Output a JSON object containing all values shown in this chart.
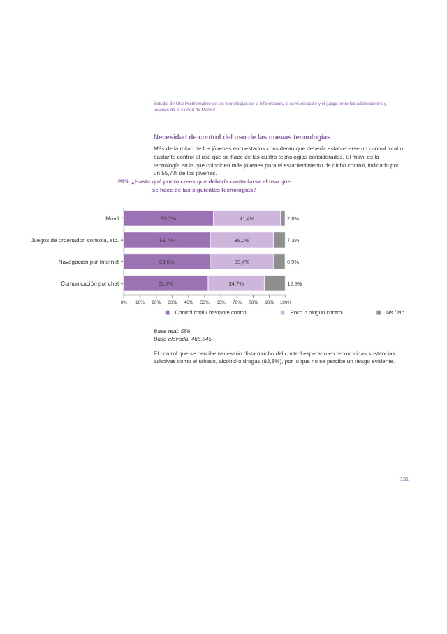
{
  "chart_data": {
    "type": "bar",
    "orientation": "horizontal",
    "stacked": true,
    "title": "P25. ¿Hasta qué punto crees que debería controlarse el uso que se hace de las siguientes tecnologías?",
    "categories": [
      "Móvil",
      "Juegos de ordenador, consola, etc.",
      "Navegación por Internet",
      "Comunicación por chat"
    ],
    "series": [
      {
        "name": "Control total / bastante control",
        "color": "#9b72b3",
        "values": [
          55.7,
          53.7,
          53.6,
          52.4
        ],
        "value_labels": [
          "55,7%",
          "53,7%",
          "53,6%",
          "52,4%"
        ]
      },
      {
        "name": "Poco o ningún control",
        "color": "#cdb5dc",
        "values": [
          41.4,
          39.0,
          39.4,
          34.7
        ],
        "value_labels": [
          "41,4%",
          "39,0%",
          "39,4%",
          "34,7%"
        ]
      },
      {
        "name": "Ns / Nc",
        "color": "#8f8f8f",
        "values": [
          2.8,
          7.3,
          6.9,
          12.9
        ],
        "value_labels": [
          "2,8%",
          "7,3%",
          "6,9%",
          "12,9%"
        ]
      }
    ],
    "xlim": [
      0,
      100
    ],
    "xticks": [
      {
        "value": 0,
        "label": "0%"
      },
      {
        "value": 10,
        "label": "10%"
      },
      {
        "value": 20,
        "label": "20%"
      },
      {
        "value": 30,
        "label": "30%"
      },
      {
        "value": 40,
        "label": "40%"
      },
      {
        "value": 50,
        "label": "50%"
      },
      {
        "value": 60,
        "label": "60%"
      },
      {
        "value": 70,
        "label": "70%"
      },
      {
        "value": 80,
        "label": "80%"
      },
      {
        "value": 90,
        "label": "90%"
      },
      {
        "value": 100,
        "label": "100%"
      }
    ],
    "grid": false,
    "legend": "bottom",
    "annotations": [
      "Estudio de Uso Problemático de las tecnologías de la información, la comunicación y el juego entre los adolescentes y jóvenes de la ciudad de Madrid",
      "Necesidad de control del uso de las nuevas tecnologías",
      "Más de la mitad de los jóvenes encuestados consideran que debería establecerse un control total o bastante control al uso que se hace de las cuatro tecnologías consideradas. El móvil es la tecnología en la que coinciden más jóvenes para el establecimiento de dicho control, indicado por un 55,7% de los jóvenes.",
      "Base real: 556",
      "Base elevada: 465.845",
      "El control que se percibe necesario dista mucho del control esperado en reconocidas sustancias adictivas como el tabaco, alcohol o drogas (82,8%), por lo que no se percibe un riesgo evidente.",
      "131"
    ]
  }
}
